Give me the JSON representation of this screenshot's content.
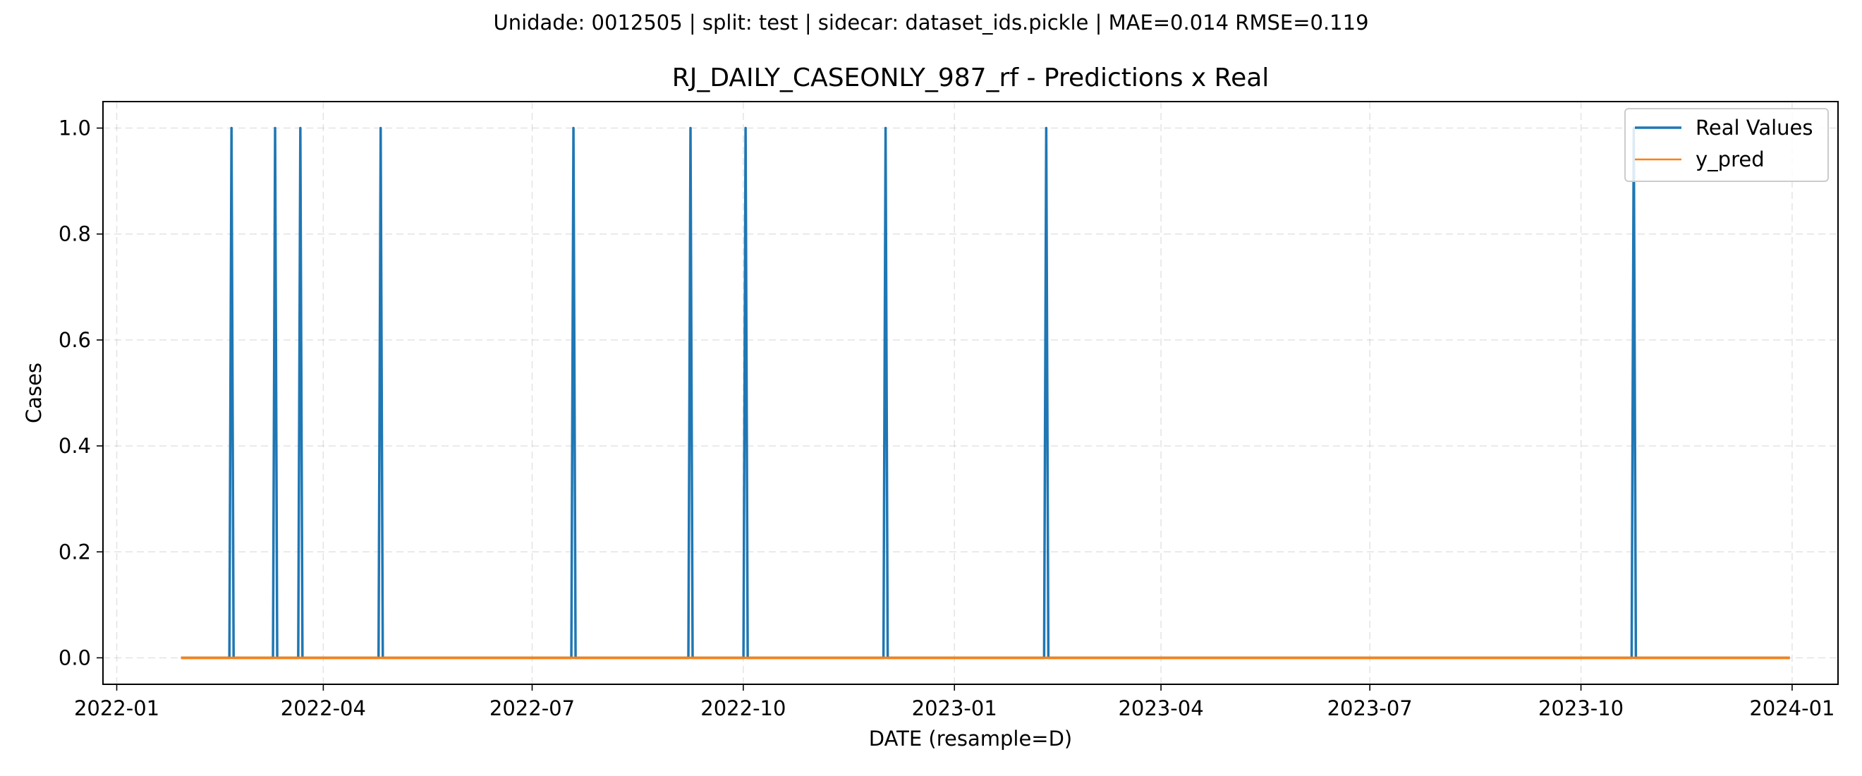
{
  "figure": {
    "suptitle": "Unidade: 0012505 | split: test | sidecar: dataset_ids.pickle | MAE=0.014  RMSE=0.119"
  },
  "chart_data": {
    "type": "line",
    "title": "RJ_DAILY_CASEONLY_987_rf - Predictions x Real",
    "xlabel": "DATE (resample=D)",
    "ylabel": "Cases",
    "x_range": [
      "2021-12-26",
      "2024-01-21"
    ],
    "ylim": [
      -0.05,
      1.05
    ],
    "grid": true,
    "legend_position": "upper right",
    "x_ticks": [
      "2022-01",
      "2022-04",
      "2022-07",
      "2022-10",
      "2023-01",
      "2023-04",
      "2023-07",
      "2023-10",
      "2024-01"
    ],
    "y_ticks": [
      "0.0",
      "0.2",
      "0.4",
      "0.6",
      "0.8",
      "1.0"
    ],
    "series": [
      {
        "name": "Real Values",
        "color": "#1f77b4",
        "start": "2022-01-29",
        "end": "2023-12-31",
        "baseline": 0,
        "spike_dates": [
          "2022-02-20",
          "2022-03-11",
          "2022-03-22",
          "2022-04-26",
          "2022-07-19",
          "2022-09-08",
          "2022-10-02",
          "2022-12-02",
          "2023-02-10",
          "2023-10-24"
        ],
        "spike_value": 1
      },
      {
        "name": "y_pred",
        "color": "#ff7f0e",
        "start": "2022-01-29",
        "end": "2023-12-31",
        "value": 0
      }
    ]
  }
}
